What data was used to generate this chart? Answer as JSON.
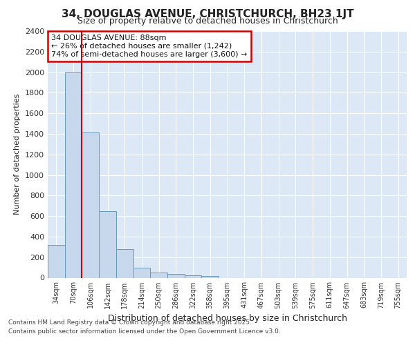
{
  "title1": "34, DOUGLAS AVENUE, CHRISTCHURCH, BH23 1JT",
  "title2": "Size of property relative to detached houses in Christchurch",
  "xlabel": "Distribution of detached houses by size in Christchurch",
  "ylabel": "Number of detached properties",
  "bar_labels": [
    "34sqm",
    "70sqm",
    "106sqm",
    "142sqm",
    "178sqm",
    "214sqm",
    "250sqm",
    "286sqm",
    "322sqm",
    "358sqm",
    "395sqm",
    "431sqm",
    "467sqm",
    "503sqm",
    "539sqm",
    "575sqm",
    "611sqm",
    "647sqm",
    "683sqm",
    "719sqm",
    "755sqm"
  ],
  "bar_values": [
    320,
    2000,
    1410,
    650,
    280,
    100,
    50,
    40,
    25,
    15,
    0,
    0,
    0,
    0,
    0,
    0,
    0,
    0,
    0,
    0,
    0
  ],
  "bar_color": "#c8d8ec",
  "bar_edgecolor": "#6699bb",
  "annotation_text_line1": "34 DOUGLAS AVENUE: 88sqm",
  "annotation_text_line2": "← 26% of detached houses are smaller (1,242)",
  "annotation_text_line3": "74% of semi-detached houses are larger (3,600) →",
  "annotation_box_color": "#cc0000",
  "red_line_x": 1.5,
  "ylim": [
    0,
    2400
  ],
  "yticks": [
    0,
    200,
    400,
    600,
    800,
    1000,
    1200,
    1400,
    1600,
    1800,
    2000,
    2200,
    2400
  ],
  "footer1": "Contains HM Land Registry data © Crown copyright and database right 2025.",
  "footer2": "Contains public sector information licensed under the Open Government Licence v3.0.",
  "bg_color": "#ffffff",
  "plot_bg_color": "#dce8f5",
  "grid_color": "#ffffff",
  "red_line_color": "#cc0000",
  "title1_fontsize": 11,
  "title2_fontsize": 9,
  "ylabel_fontsize": 8,
  "xlabel_fontsize": 9,
  "tick_fontsize": 7,
  "footer_fontsize": 6.5,
  "annot_fontsize": 8
}
